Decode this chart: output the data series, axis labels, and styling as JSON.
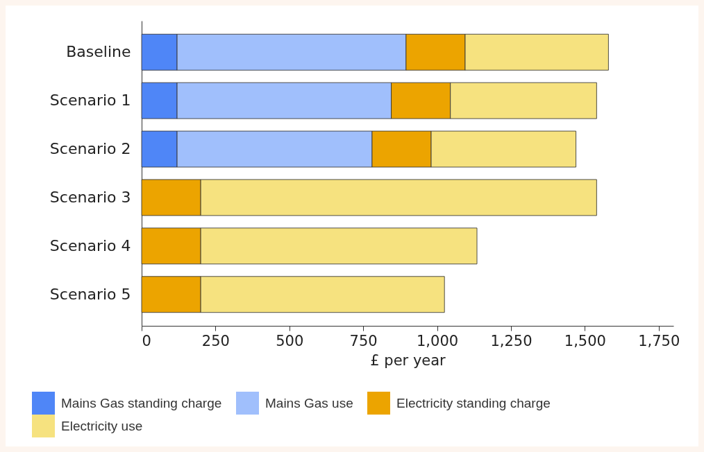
{
  "chart_data": {
    "type": "bar",
    "orientation": "horizontal",
    "stacked": true,
    "categories": [
      "Baseline",
      "Scenario 1",
      "Scenario 2",
      "Scenario 3",
      "Scenario 4",
      "Scenario 5"
    ],
    "series": [
      {
        "name": "Mains Gas standing charge",
        "color": "#4f86f7",
        "values": [
          120,
          120,
          120,
          null,
          null,
          null
        ]
      },
      {
        "name": "Mains Gas use",
        "color": "#a0bffc",
        "values": [
          775,
          725,
          660,
          null,
          null,
          null
        ]
      },
      {
        "name": "Electricity standing charge",
        "color": "#eca400",
        "values": [
          200,
          200,
          200,
          200,
          200,
          200
        ]
      },
      {
        "name": "Electricity use",
        "color": "#f6e27f",
        "values": [
          485,
          495,
          490,
          1340,
          935,
          825
        ]
      }
    ],
    "xlabel": "£ per year",
    "xlim": [
      0,
      1800
    ],
    "xticks": [
      0,
      250,
      500,
      750,
      {
        "value": 1000,
        "label": "1,000"
      },
      {
        "value": 1250,
        "label": "1,250"
      },
      {
        "value": 1500,
        "label": "1,500"
      },
      {
        "value": 1750,
        "label": "1,750"
      }
    ],
    "legend": "bottom left"
  }
}
